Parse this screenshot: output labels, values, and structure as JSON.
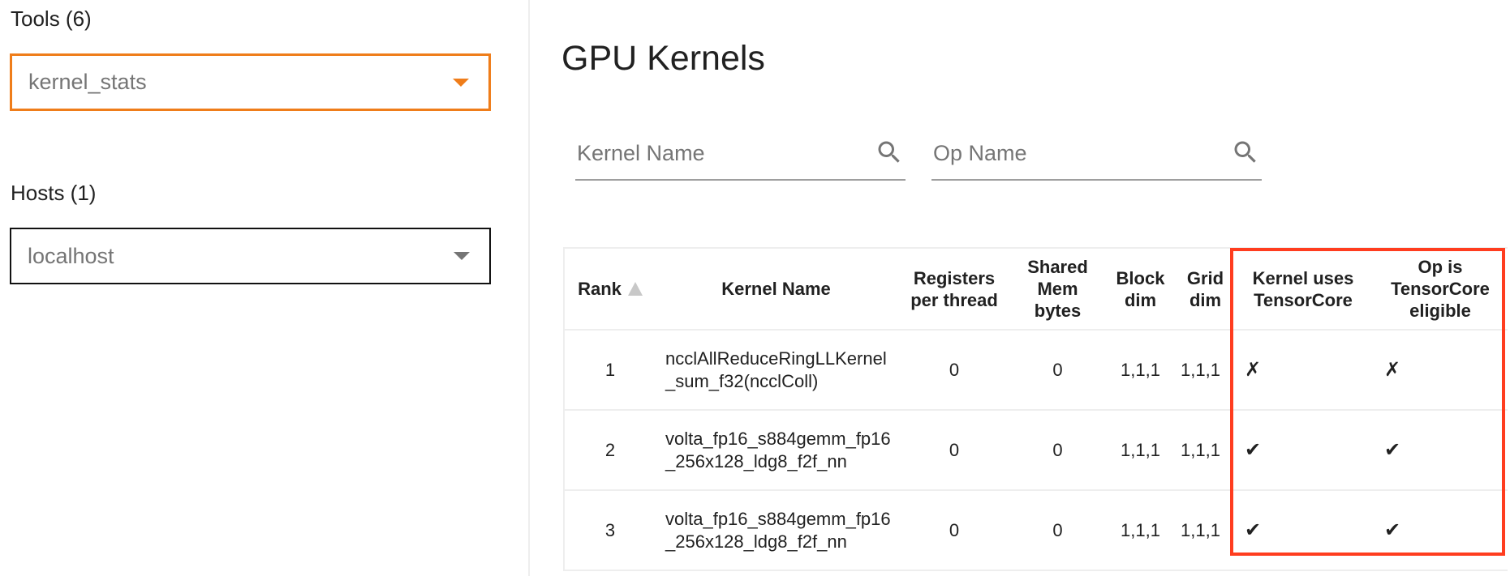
{
  "sidebar": {
    "tools_label": "Tools (6)",
    "tools_value": "kernel_stats",
    "hosts_label": "Hosts (1)",
    "hosts_value": "localhost"
  },
  "main": {
    "title": "GPU Kernels",
    "kernel_search_placeholder": "Kernel Name",
    "op_search_placeholder": "Op Name"
  },
  "table": {
    "headers": [
      "Rank",
      "Kernel Name",
      "Registers per thread",
      "Shared Mem bytes",
      "Block dim",
      "Grid dim",
      "Kernel uses TensorCore",
      "Op is TensorCore eligible"
    ],
    "rows": [
      {
        "rank": "1",
        "kernel_name": "ncclAllReduceRingLLKernel_sum_f32(ncclColl)",
        "registers": "0",
        "shared_mem": "0",
        "block_dim": "1,1,1",
        "grid_dim": "1,1,1",
        "uses_tc": "✗",
        "tc_eligible": "✗"
      },
      {
        "rank": "2",
        "kernel_name": "volta_fp16_s884gemm_fp16_256x128_ldg8_f2f_nn",
        "registers": "0",
        "shared_mem": "0",
        "block_dim": "1,1,1",
        "grid_dim": "1,1,1",
        "uses_tc": "✔",
        "tc_eligible": "✔"
      },
      {
        "rank": "3",
        "kernel_name": "volta_fp16_s884gemm_fp16_256x128_ldg8_f2f_nn",
        "registers": "0",
        "shared_mem": "0",
        "block_dim": "1,1,1",
        "grid_dim": "1,1,1",
        "uses_tc": "✔",
        "tc_eligible": "✔"
      }
    ]
  },
  "colors": {
    "accent": "#ef7d1a",
    "highlight": "#ff3d1f"
  }
}
